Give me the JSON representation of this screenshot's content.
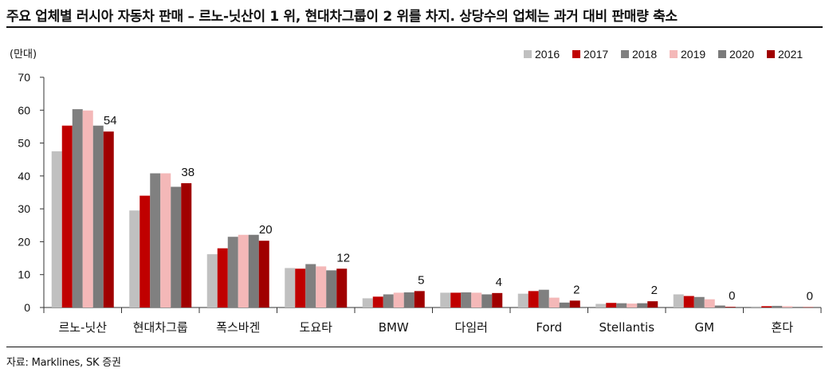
{
  "title": "주요 업체별 러시아 자동차 판매 – 르노-닛산이 1 위, 현대차그룹이 2 위를 차지. 상당수의 업체는 과거 대비 판매량 축소",
  "source": "자료: Marklines, SK 증권",
  "chart_data": {
    "type": "bar",
    "unit_label": "(만대)",
    "categories": [
      "르노-닛산",
      "현대차그룹",
      "폭스바겐",
      "도요타",
      "BMW",
      "다임러",
      "Ford",
      "Stellantis",
      "GM",
      "혼다"
    ],
    "series": [
      {
        "name": "2016",
        "color": "#c0c0c0",
        "values": [
          47.5,
          29.5,
          16.2,
          12.0,
          2.8,
          4.5,
          4.2,
          1.1,
          4.0,
          0.3
        ]
      },
      {
        "name": "2017",
        "color": "#c00000",
        "values": [
          55.3,
          34.0,
          18.0,
          11.8,
          3.3,
          4.5,
          5.0,
          1.4,
          3.5,
          0.4
        ]
      },
      {
        "name": "2018",
        "color": "#808080",
        "values": [
          60.3,
          40.8,
          21.5,
          13.2,
          4.0,
          4.6,
          5.4,
          1.3,
          3.2,
          0.5
        ]
      },
      {
        "name": "2019",
        "color": "#f4b8b8",
        "values": [
          59.9,
          40.8,
          22.1,
          12.5,
          4.5,
          4.5,
          3.0,
          1.2,
          2.5,
          0.4
        ]
      },
      {
        "name": "2020",
        "color": "#7a7a7a",
        "values": [
          55.3,
          36.7,
          22.1,
          11.3,
          4.6,
          4.0,
          1.5,
          1.3,
          0.6,
          0.2
        ]
      },
      {
        "name": "2021",
        "color": "#a00000",
        "values": [
          53.5,
          37.8,
          20.3,
          11.8,
          5.0,
          4.4,
          2.1,
          1.9,
          0.2,
          0.1
        ]
      }
    ],
    "data_labels": [
      "54",
      "38",
      "20",
      "12",
      "5",
      "4",
      "2",
      "2",
      "0",
      "0"
    ],
    "ylim": [
      0,
      70
    ],
    "yticks": [
      0,
      10,
      20,
      30,
      40,
      50,
      60,
      70
    ],
    "legend_position": "top-right",
    "grid": false
  }
}
